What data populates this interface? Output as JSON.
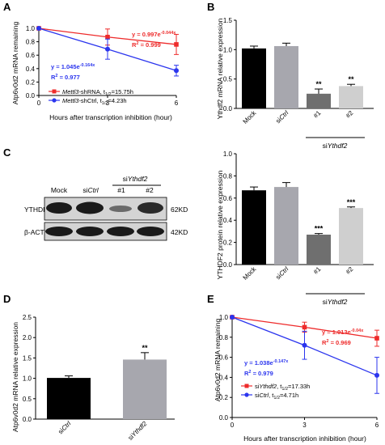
{
  "colors": {
    "red": "#ee2b2b",
    "blue": "#2b35ee",
    "black": "#000000",
    "bar_black": "#000000",
    "bar_lightgray": "#a7a7ae",
    "bar_darkgray": "#6f6f6f",
    "bar_pale": "#cfcfcf"
  },
  "panels": {
    "A": {
      "letter": "A",
      "ylabel": "Atp6v0d2 mRNA remaining",
      "xlabel": "Hours after transcription inhibition (hour)",
      "xticks": [
        "0",
        "3",
        "6"
      ],
      "yticks": [
        "0.0",
        "0.2",
        "0.4",
        "0.6",
        "0.8",
        "1.0"
      ],
      "red_eq": "y = 0.997e",
      "red_eq_exp": "-0.044x",
      "red_r2": "R",
      "red_r2_val": " = 0.999",
      "blue_eq": "y = 1.045e",
      "blue_eq_exp": "-0.164x",
      "blue_r2": "R",
      "blue_r2_val": " = 0.977",
      "legend_red_gene": "Mettl3",
      "legend_red_rest": "-shRNA, t",
      "legend_red_sub": "1/2",
      "legend_red_end": "=15.75h",
      "legend_blue_gene": "Mettl3",
      "legend_blue_rest": "-shCtrl, t",
      "legend_blue_sub": "1/2",
      "legend_blue_end": "=4.23h"
    },
    "B": {
      "letter": "B",
      "ylabel": "Ythdf2 mRNA relative expression",
      "yticks": [
        "0.0",
        "0.5",
        "1.0",
        "1.5"
      ],
      "categories": [
        "Mock",
        "siCtrl",
        "#1",
        "#2"
      ],
      "cat_prefix": [
        "",
        "si",
        "",
        ""
      ],
      "cat_main": [
        "Mock",
        "Ctrl",
        "#1",
        "#2"
      ],
      "group_label_prefix": "si",
      "group_label_gene": "Ythdf2",
      "sig": [
        "",
        "",
        "**",
        "**"
      ]
    },
    "C": {
      "letter": "C",
      "blot_headers": [
        "Mock",
        "Ctrl",
        "#1",
        "#2"
      ],
      "blot_header_prefix": "si",
      "blot_group_prefix": "si",
      "blot_group_gene": "Ythdf2",
      "row1_label": "YTHDF2",
      "row2_label": "β-ACTIN",
      "row1_kd": "62KD",
      "row2_kd": "42KD",
      "ylabel": "YTHDF2 protein relative expression",
      "yticks": [
        "0.0",
        "0.2",
        "0.4",
        "0.6",
        "0.8",
        "1.0"
      ],
      "cat_main": [
        "Mock",
        "Ctrl",
        "#1",
        "#2"
      ],
      "group_label_prefix": "si",
      "group_label_gene": "Ythdf2",
      "sig": [
        "",
        "",
        "***",
        "***"
      ]
    },
    "D": {
      "letter": "D",
      "ylabel": "Atp6v0d2 mRNA relative expression",
      "yticks": [
        "0.0",
        "0.5",
        "1.0",
        "1.5",
        "2.0",
        "2.5"
      ],
      "cat_prefix": [
        "si",
        "si"
      ],
      "cat_main": [
        "Ctrl",
        "Ythdf2"
      ],
      "sig": [
        "",
        "**"
      ]
    },
    "E": {
      "letter": "E",
      "ylabel": "Atp6v0d2 mRNA remaining",
      "xlabel": "Hours after transcription inhibition (hour)",
      "xticks": [
        "0",
        "3",
        "6"
      ],
      "yticks": [
        "0.0",
        "0.2",
        "0.4",
        "0.6",
        "0.8",
        "1.0"
      ],
      "red_eq": "y = 1.013e",
      "red_eq_exp": "-0.04x",
      "red_r2": "R",
      "red_r2_val": " = 0.969",
      "blue_eq": "y = 1.038e",
      "blue_eq_exp": "-0.147x",
      "blue_r2": "R",
      "blue_r2_val": " = 0.979",
      "legend_red_prefix": "si",
      "legend_red_gene": "Ythdf2",
      "legend_red_rest": ", t",
      "legend_red_sub": "1/2",
      "legend_red_end": "=17.33h",
      "legend_blue_prefix": "si",
      "legend_blue_gene": "Ctrl",
      "legend_blue_rest": ", t",
      "legend_blue_sub": "1/2",
      "legend_blue_end": "=4.71h"
    }
  },
  "chart_data": [
    {
      "type": "line",
      "panel": "A",
      "x": [
        0,
        3,
        6
      ],
      "ylim": [
        0,
        1.0
      ],
      "xlim": [
        0,
        6
      ],
      "series": [
        {
          "name": "Mettl3-shRNA, t1/2=15.75h",
          "color": "#ee2b2b",
          "values": [
            1.0,
            0.87,
            0.76
          ],
          "errors": [
            0,
            0.12,
            0.15
          ]
        },
        {
          "name": "Mettl3-shCtrl, t1/2=4.23h",
          "color": "#2b35ee",
          "values": [
            1.0,
            0.69,
            0.37
          ],
          "errors": [
            0,
            0.15,
            0.08
          ]
        }
      ]
    },
    {
      "type": "bar",
      "panel": "B",
      "categories": [
        "Mock",
        "siCtrl",
        "#1",
        "#2"
      ],
      "values": [
        1.02,
        1.06,
        0.25,
        0.38
      ],
      "errors": [
        0.04,
        0.05,
        0.08,
        0.03
      ],
      "ylim": [
        0,
        1.5
      ],
      "ylabel": "Ythdf2 mRNA relative expression"
    },
    {
      "type": "bar",
      "panel": "C",
      "categories": [
        "Mock",
        "siCtrl",
        "#1",
        "#2"
      ],
      "values": [
        0.67,
        0.7,
        0.27,
        0.51
      ],
      "errors": [
        0.03,
        0.04,
        0.01,
        0.01
      ],
      "ylim": [
        0,
        1.0
      ],
      "ylabel": "YTHDF2 protein relative expression"
    },
    {
      "type": "bar",
      "panel": "D",
      "categories": [
        "siCtrl",
        "siYthdf2"
      ],
      "values": [
        1.01,
        1.46
      ],
      "errors": [
        0.05,
        0.17
      ],
      "ylim": [
        0,
        2.5
      ],
      "ylabel": "Atp6v0d2 mRNA relative expression"
    },
    {
      "type": "line",
      "panel": "E",
      "x": [
        0,
        3,
        6
      ],
      "ylim": [
        0,
        1.0
      ],
      "xlim": [
        0,
        6
      ],
      "series": [
        {
          "name": "siYthdf2, t1/2=17.33h",
          "color": "#ee2b2b",
          "values": [
            1.0,
            0.9,
            0.79
          ],
          "errors": [
            0,
            0.05,
            0.08
          ]
        },
        {
          "name": "siCtrl, t1/2=4.71h",
          "color": "#2b35ee",
          "values": [
            1.0,
            0.72,
            0.42
          ],
          "errors": [
            0,
            0.14,
            0.18
          ]
        }
      ]
    }
  ]
}
